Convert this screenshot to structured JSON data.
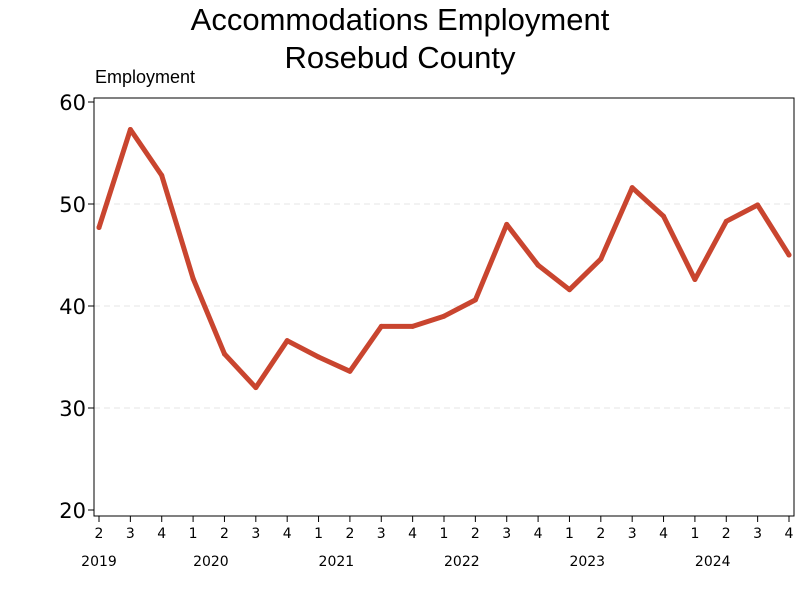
{
  "chart_data": {
    "type": "line",
    "title": "Accommodations Employment",
    "subtitle": "Rosebud County",
    "ylabel": "Employment",
    "xlabel": "",
    "ylim": [
      20,
      60
    ],
    "yticks": [
      20,
      30,
      40,
      50,
      60
    ],
    "grid": true,
    "legend": "none",
    "line_color": "#c9452f",
    "x_quarters": [
      "2",
      "3",
      "4",
      "1",
      "2",
      "3",
      "4",
      "1",
      "2",
      "3",
      "4",
      "1",
      "2",
      "3",
      "4",
      "1",
      "2",
      "3",
      "4",
      "1",
      "2",
      "3",
      "4"
    ],
    "x_years": [
      {
        "label": "2019",
        "index": 0
      },
      {
        "label": "2020",
        "index": 3
      },
      {
        "label": "2021",
        "index": 7
      },
      {
        "label": "2022",
        "index": 11
      },
      {
        "label": "2023",
        "index": 15
      },
      {
        "label": "2024",
        "index": 19
      }
    ],
    "series": [
      {
        "values": [
          47.7,
          57.3,
          52.8,
          42.7,
          35.3,
          32.0,
          36.6,
          35.0,
          33.6,
          38.0,
          38.0,
          39.0,
          40.6,
          48.0,
          44.0,
          41.6,
          44.6,
          51.6,
          48.8,
          42.6,
          48.3,
          49.9,
          45.0
        ]
      }
    ]
  }
}
